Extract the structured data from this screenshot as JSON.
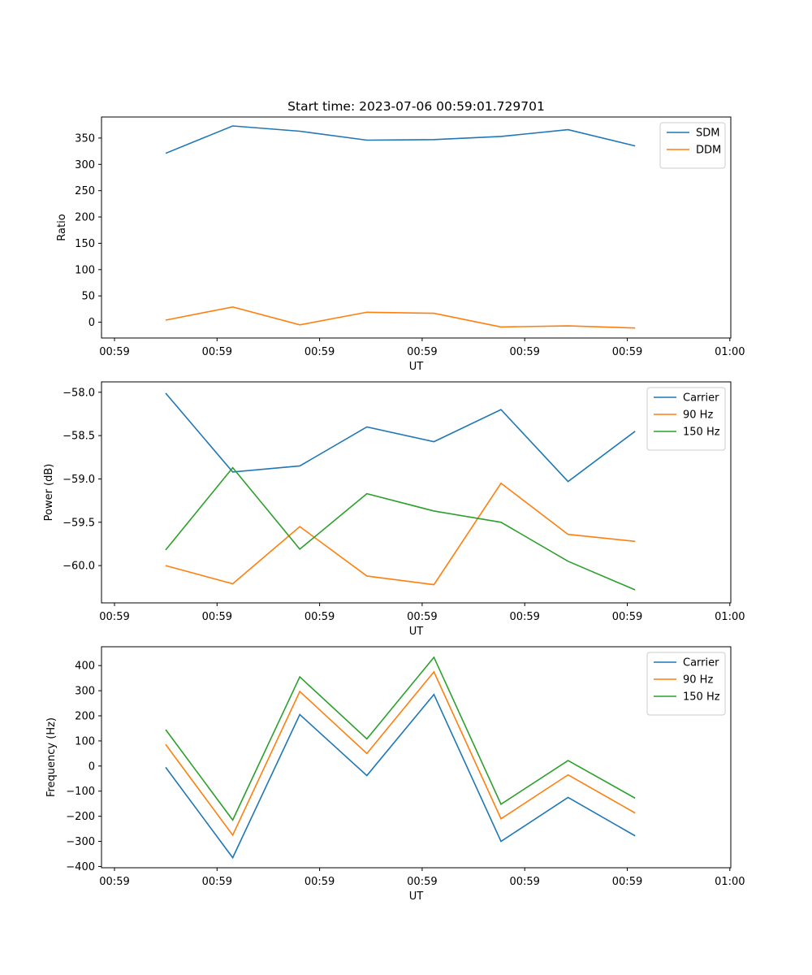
{
  "figure_title": "Start time: 2023-07-06 00:59:01.729701",
  "chart_data": [
    {
      "type": "line",
      "title": "Start time: 2023-07-06 00:59:01.729701",
      "xlabel": "UT",
      "ylabel": "Ratio",
      "x_ticks": [
        "00:59",
        "00:59",
        "00:59",
        "00:59",
        "00:59",
        "00:59",
        "01:00"
      ],
      "x_points": 8,
      "ylim": [
        -30,
        390
      ],
      "y_ticks": [
        0,
        50,
        100,
        150,
        200,
        250,
        300,
        350
      ],
      "y_tick_labels": [
        "0",
        "50",
        "100",
        "150",
        "200",
        "250",
        "300",
        "350"
      ],
      "legend_position": "top-right",
      "series": [
        {
          "name": "SDM",
          "color": "#1f77b4",
          "values": [
            321,
            373,
            363,
            346,
            347,
            353,
            366,
            335
          ]
        },
        {
          "name": "DDM",
          "color": "#ff7f0e",
          "values": [
            4,
            29,
            -5,
            19,
            17,
            -9,
            -7,
            -11
          ]
        }
      ]
    },
    {
      "type": "line",
      "title": "",
      "xlabel": "UT",
      "ylabel": "Power (dB)",
      "x_ticks": [
        "00:59",
        "00:59",
        "00:59",
        "00:59",
        "00:59",
        "00:59",
        "01:00"
      ],
      "x_points": 8,
      "ylim": [
        -60.43,
        -57.88
      ],
      "y_ticks": [
        -60.0,
        -59.5,
        -59.0,
        -58.5,
        -58.0
      ],
      "y_tick_labels": [
        "−60.0",
        "−59.5",
        "−59.0",
        "−58.5",
        "−58.0"
      ],
      "legend_position": "top-right",
      "series": [
        {
          "name": "Carrier",
          "color": "#1f77b4",
          "values": [
            -58.01,
            -58.92,
            -58.85,
            -58.4,
            -58.57,
            -58.2,
            -59.03,
            -58.45
          ]
        },
        {
          "name": "90 Hz",
          "color": "#ff7f0e",
          "values": [
            -60.0,
            -60.21,
            -59.55,
            -60.12,
            -60.22,
            -59.05,
            -59.64,
            -59.72
          ]
        },
        {
          "name": "150 Hz",
          "color": "#2ca02c",
          "values": [
            -59.82,
            -58.87,
            -59.81,
            -59.17,
            -59.37,
            -59.5,
            -59.95,
            -60.28
          ]
        }
      ]
    },
    {
      "type": "line",
      "title": "",
      "xlabel": "UT",
      "ylabel": "Frequency (Hz)",
      "x_ticks": [
        "00:59",
        "00:59",
        "00:59",
        "00:59",
        "00:59",
        "00:59",
        "01:00"
      ],
      "x_points": 8,
      "ylim": [
        -405,
        475
      ],
      "y_ticks": [
        -400,
        -300,
        -200,
        -100,
        0,
        100,
        200,
        300,
        400
      ],
      "y_tick_labels": [
        "−400",
        "−300",
        "−200",
        "−100",
        "0",
        "100",
        "200",
        "300",
        "400"
      ],
      "legend_position": "top-right",
      "series": [
        {
          "name": "Carrier",
          "color": "#1f77b4",
          "values": [
            -5,
            -365,
            205,
            -38,
            285,
            -300,
            -125,
            -278
          ]
        },
        {
          "name": "90 Hz",
          "color": "#ff7f0e",
          "values": [
            86,
            -275,
            297,
            50,
            375,
            -210,
            -35,
            -187
          ]
        },
        {
          "name": "150 Hz",
          "color": "#2ca02c",
          "values": [
            145,
            -215,
            355,
            108,
            433,
            -152,
            22,
            -128
          ]
        }
      ]
    }
  ]
}
